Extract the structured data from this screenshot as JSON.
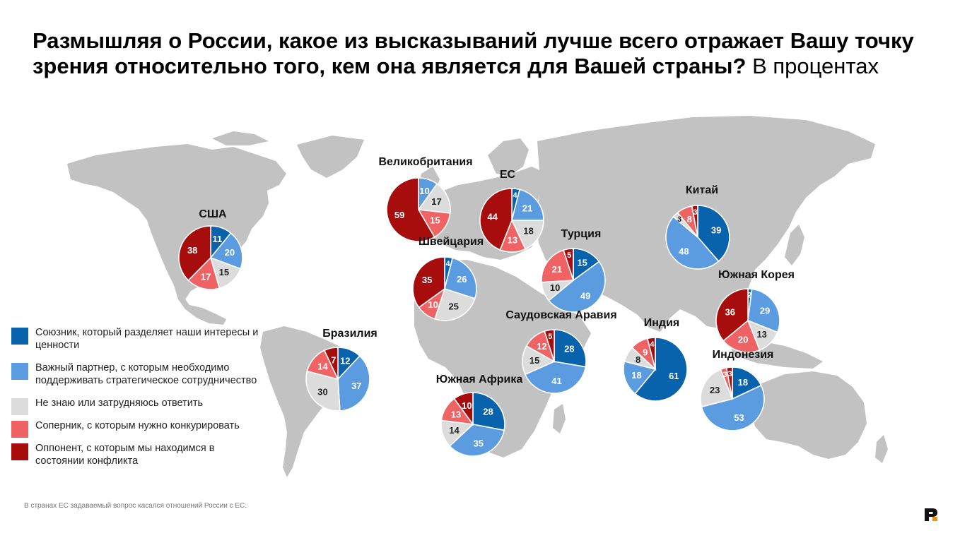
{
  "title": {
    "bold": "Размышляя о России, какое из высказываний лучше всего отражает Вашу точку зрения относительно того, кем она является для Вашей страны?",
    "normal": "В процентах"
  },
  "colors": {
    "ally": "#0862ac",
    "partner": "#5b9be0",
    "dontknow": "#dcdcdc",
    "rival": "#ef6364",
    "opponent": "#a70d0d",
    "map": "#c2c2c2"
  },
  "legend": [
    {
      "key": "ally",
      "label": "Союзник, который разделяет наши интересы и ценности"
    },
    {
      "key": "partner",
      "label": "Важный партнер, с которым необходимо поддерживать стратегическое сотрудничество"
    },
    {
      "key": "dontknow",
      "label": "Не знаю или затрудняюсь ответить"
    },
    {
      "key": "rival",
      "label": "Соперник, с которым нужно конкурировать"
    },
    {
      "key": "opponent",
      "label": "Оппонент, с которым мы находимся в состоянии конфликта"
    }
  ],
  "footnote": "В странах ЕС задаваемый вопрос касался отношений России с ЕС.",
  "chart_data": {
    "type": "pie",
    "series_order": [
      "ally",
      "partner",
      "dontknow",
      "rival",
      "opponent"
    ],
    "pies": [
      {
        "country": "США",
        "values": [
          11,
          20,
          15,
          17,
          38
        ]
      },
      {
        "country": "Великобритания",
        "values": [
          0,
          10,
          17,
          15,
          59
        ]
      },
      {
        "country": "ЕС",
        "values": [
          4,
          21,
          18,
          13,
          44
        ]
      },
      {
        "country": "Швейцария",
        "values": [
          4,
          26,
          25,
          10,
          35
        ]
      },
      {
        "country": "Турция",
        "values": [
          15,
          49,
          10,
          21,
          5
        ]
      },
      {
        "country": "Китай",
        "values": [
          39,
          48,
          3,
          8,
          3
        ]
      },
      {
        "country": "Южная Корея",
        "values": [
          2,
          29,
          13,
          20,
          36
        ]
      },
      {
        "country": "Саудовская Аравия",
        "values": [
          28,
          41,
          15,
          12,
          5
        ]
      },
      {
        "country": "Индия",
        "values": [
          61,
          18,
          8,
          9,
          4
        ]
      },
      {
        "country": "Бразилия",
        "values": [
          12,
          37,
          30,
          14,
          7
        ]
      },
      {
        "country": "Южная Африка",
        "values": [
          28,
          35,
          14,
          13,
          10
        ]
      },
      {
        "country": "Индонезия",
        "values": [
          18,
          53,
          23,
          3,
          3
        ]
      }
    ]
  }
}
